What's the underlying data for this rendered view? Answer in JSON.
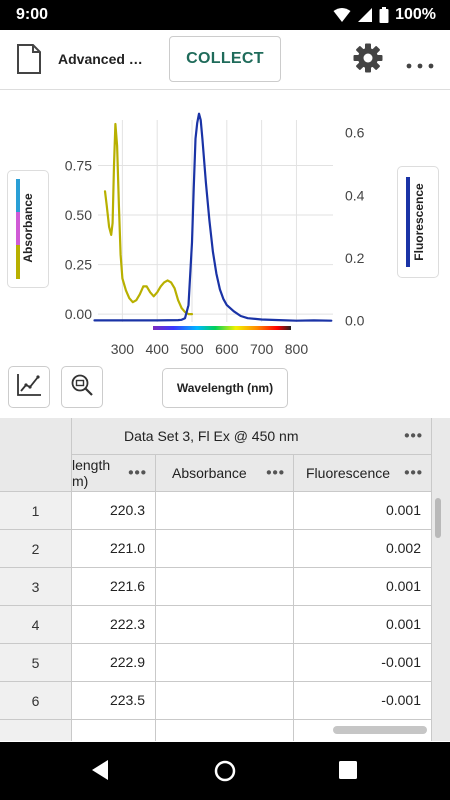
{
  "status_bar": {
    "time": "9:00",
    "battery": "100%"
  },
  "app_bar": {
    "title": "Advanced …",
    "collect_label": "COLLECT"
  },
  "chart": {
    "left_axis_label": "Absorbance",
    "right_axis_label": "Fluorescence",
    "x_axis_label": "Wavelength (nm)",
    "colors": {
      "absorbance": "#b8b000",
      "fluorescence": "#1a33a6",
      "legend_absorbance": [
        "#2a9fd6",
        "#d05bd6",
        "#b8b000"
      ]
    }
  },
  "chart_data": {
    "type": "line",
    "xlabel": "Wavelength (nm)",
    "xlim": [
      230,
      905
    ],
    "x_ticks": [
      "300",
      "400",
      "500",
      "600",
      "700",
      "800"
    ],
    "y_left": {
      "label": "Absorbance",
      "ylim": [
        -0.04,
        0.98
      ],
      "ticks": [
        "0.00",
        "0.25",
        "0.50",
        "0.75"
      ]
    },
    "y_right": {
      "label": "Fluorescence",
      "ylim": [
        -0.004,
        0.64
      ],
      "ticks": [
        "0.0",
        "0.2",
        "0.4",
        "0.6"
      ]
    },
    "grid": true,
    "series": [
      {
        "name": "Absorbance",
        "axis": "left",
        "x": [
          250,
          255,
          262,
          268,
          272,
          276,
          280,
          285,
          290,
          295,
          300,
          310,
          320,
          330,
          340,
          350,
          360,
          370,
          380,
          390,
          400,
          410,
          420,
          430,
          440,
          450,
          460,
          470,
          480,
          490,
          500
        ],
        "y": [
          0.62,
          0.55,
          0.44,
          0.4,
          0.46,
          0.75,
          0.96,
          0.85,
          0.55,
          0.3,
          0.18,
          0.12,
          0.08,
          0.06,
          0.07,
          0.1,
          0.14,
          0.14,
          0.11,
          0.09,
          0.11,
          0.14,
          0.16,
          0.17,
          0.16,
          0.13,
          0.07,
          0.03,
          0.01,
          0.0,
          0.0
        ]
      },
      {
        "name": "Fluorescence",
        "axis": "right",
        "x": [
          220,
          300,
          400,
          460,
          470,
          480,
          490,
          500,
          505,
          510,
          515,
          520,
          525,
          530,
          540,
          550,
          560,
          570,
          580,
          590,
          600,
          620,
          640,
          660,
          700,
          750,
          800,
          850,
          900
        ],
        "y": [
          0.001,
          0.001,
          0.001,
          0.002,
          0.003,
          0.008,
          0.05,
          0.25,
          0.42,
          0.58,
          0.63,
          0.66,
          0.64,
          0.58,
          0.44,
          0.32,
          0.22,
          0.15,
          0.1,
          0.07,
          0.05,
          0.03,
          0.015,
          0.008,
          0.004,
          0.002,
          0.0,
          0.001,
          0.0
        ]
      }
    ]
  },
  "table": {
    "dataset_header": "Data Set 3, Fl Ex @ 450 nm",
    "columns": [
      "Wavelength (nm)",
      "Absorbance",
      "Fluorescence"
    ],
    "col0_line1": "length",
    "col0_line2": "m)",
    "more_symbol": "•••",
    "rows": [
      {
        "n": "1",
        "wavelength": "220.3",
        "absorbance": "",
        "fluorescence": "0.001"
      },
      {
        "n": "2",
        "wavelength": "221.0",
        "absorbance": "",
        "fluorescence": "0.002"
      },
      {
        "n": "3",
        "wavelength": "221.6",
        "absorbance": "",
        "fluorescence": "0.001"
      },
      {
        "n": "4",
        "wavelength": "222.3",
        "absorbance": "",
        "fluorescence": "0.001"
      },
      {
        "n": "5",
        "wavelength": "222.9",
        "absorbance": "",
        "fluorescence": "-0.001"
      },
      {
        "n": "6",
        "wavelength": "223.5",
        "absorbance": "",
        "fluorescence": "-0.001"
      }
    ]
  }
}
